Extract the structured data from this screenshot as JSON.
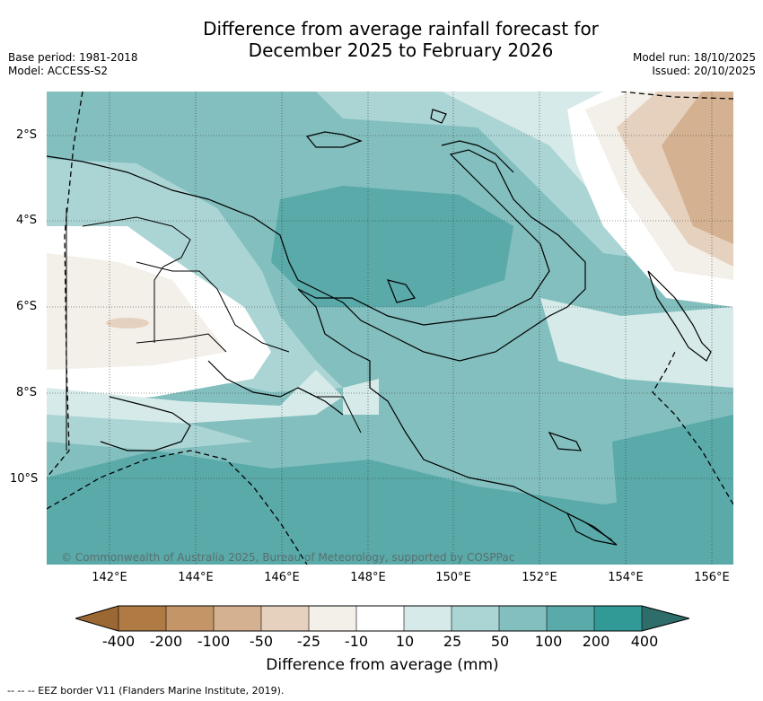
{
  "title": {
    "line1": "Difference from average rainfall forecast for",
    "line2": "December 2025 to February 2026"
  },
  "meta": {
    "base_period": "Base period: 1981-2018",
    "model": "Model: ACCESS-S2",
    "model_run": "Model run: 18/10/2025",
    "issued": "Issued: 20/10/2025"
  },
  "map": {
    "lat_ticks": [
      "2°S",
      "4°S",
      "6°S",
      "8°S",
      "10°S"
    ],
    "lon_ticks": [
      "142°E",
      "144°E",
      "146°E",
      "148°E",
      "150°E",
      "152°E",
      "154°E",
      "156°E"
    ],
    "copyright": "© Commonwealth of Australia 2025, Bureau of Meteorology, supported by COSPPac"
  },
  "colorbar": {
    "title": "Difference from average (mm)",
    "labels": [
      "-400",
      "-200",
      "-100",
      "-50",
      "-25",
      "-10",
      "10",
      "25",
      "50",
      "100",
      "200",
      "400"
    ],
    "colors": {
      "under": "#9b6733",
      "c1": "#b07a45",
      "c2": "#c39567",
      "c3": "#d4b190",
      "c4": "#e6d1bf",
      "c5": "#f3efe9",
      "c6": "#ffffff",
      "c7": "#d5eae9",
      "c8": "#abd5d4",
      "c9": "#82bfbe",
      "c10": "#5aaaaa",
      "c11": "#319a97",
      "over": "#2e6d6a"
    }
  },
  "footer": "--  --  -- EEZ border V11 (Flanders Marine Institute, 2019)."
}
